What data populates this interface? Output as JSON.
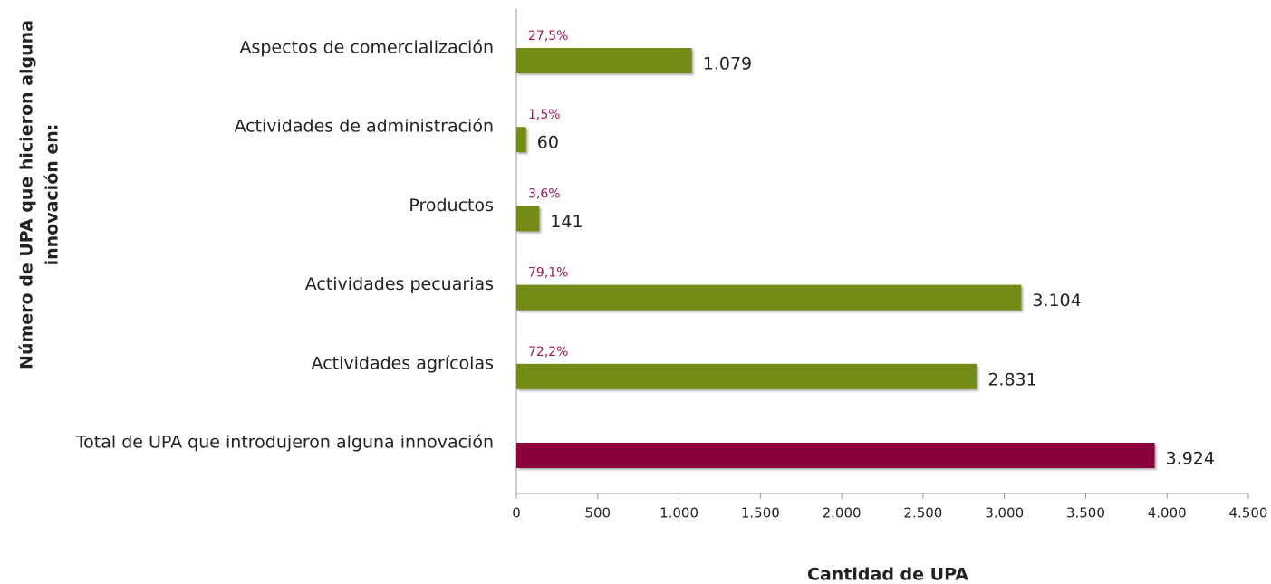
{
  "chart_data": {
    "type": "barh",
    "categories": [
      "Aspectos de comercialización",
      "Actividades de administración",
      "Productos",
      "Actividades pecuarias",
      "Actividades agrícolas",
      "Total de UPA que introdujeron alguna innovación"
    ],
    "values": [
      1079,
      60,
      141,
      3104,
      2831,
      3924
    ],
    "value_labels": [
      "1.079",
      "60",
      "141",
      "3.104",
      "2.831",
      "3.924"
    ],
    "percentages": [
      27.5,
      1.5,
      3.6,
      79.1,
      72.2,
      null
    ],
    "percentage_labels": [
      "27,5%",
      "1,5%",
      "3,6%",
      "79,1%",
      "72,2%",
      null
    ],
    "colors": [
      "#728c17",
      "#728c17",
      "#728c17",
      "#728c17",
      "#728c17",
      "#8a003a"
    ],
    "percentage_color": "#a3185c",
    "xlim": [
      0,
      4500
    ],
    "xticks": [
      0,
      500,
      {
        "value": 1000,
        "label": "1.000"
      },
      {
        "value": 1500,
        "label": "1.500"
      },
      {
        "value": 2000,
        "label": "2.000"
      },
      {
        "value": 2500,
        "label": "2.500"
      },
      {
        "value": 3000,
        "label": "3.000"
      },
      {
        "value": 3500,
        "label": "3.500"
      },
      {
        "value": 4000,
        "label": "4.000"
      },
      {
        "value": 4500,
        "label": "4.500"
      }
    ],
    "xlabel": "Cantidad de UPA",
    "ylabel": [
      "Número de UPA que hicieron alguna",
      "innovación en:"
    ]
  }
}
